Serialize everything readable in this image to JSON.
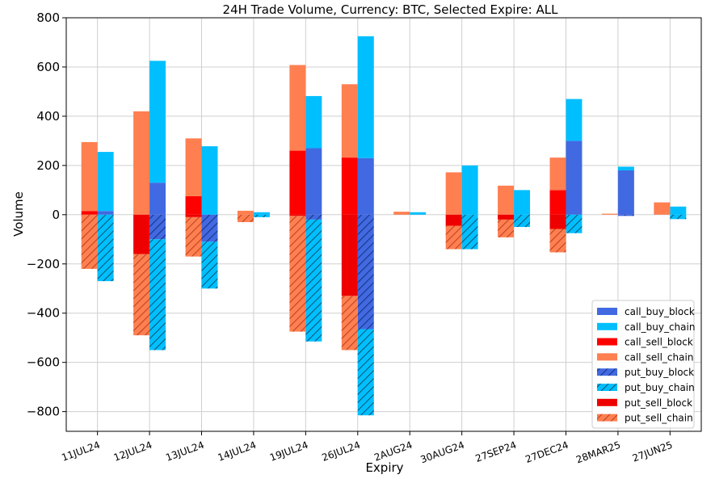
{
  "chart_data": {
    "type": "bar",
    "title": "24H Trade Volume, Currency: BTC, Selected Expire: ALL",
    "xlabel": "Expiry",
    "ylabel": "Volume",
    "ylim": [
      -880,
      800
    ],
    "yticks": [
      -800,
      -600,
      -400,
      -200,
      0,
      200,
      400,
      600,
      800
    ],
    "ytick_labels": [
      "−800",
      "−600",
      "−400",
      "−200",
      "0",
      "200",
      "400",
      "600",
      "800"
    ],
    "grid": true,
    "legend_position": "lower-right",
    "categories": [
      "11JUL24",
      "12JUL24",
      "13JUL24",
      "14JUL24",
      "19JUL24",
      "26JUL24",
      "2AUG24",
      "30AUG24",
      "27SEP24",
      "27DEC24",
      "28MAR25",
      "27JUN25"
    ],
    "series": [
      {
        "name": "call_buy_block",
        "group": "buy",
        "sign": 1,
        "color": "#4169E1",
        "hatch": false,
        "values": [
          15,
          130,
          0,
          0,
          270,
          230,
          0,
          0,
          0,
          300,
          180,
          0
        ]
      },
      {
        "name": "call_buy_chain",
        "group": "buy",
        "sign": 1,
        "color": "#00BFFF",
        "hatch": false,
        "values": [
          240,
          495,
          278,
          10,
          212,
          495,
          10,
          200,
          100,
          170,
          15,
          33
        ]
      },
      {
        "name": "call_sell_block",
        "group": "sell",
        "sign": 1,
        "color": "#FF0000",
        "hatch": false,
        "values": [
          15,
          0,
          75,
          0,
          260,
          232,
          0,
          0,
          0,
          100,
          0,
          0
        ]
      },
      {
        "name": "call_sell_chain",
        "group": "sell",
        "sign": 1,
        "color": "#FF7F50",
        "hatch": false,
        "values": [
          280,
          420,
          235,
          16,
          348,
          298,
          12,
          172,
          118,
          132,
          4,
          50
        ]
      },
      {
        "name": "put_buy_block",
        "group": "buy",
        "sign": -1,
        "color": "#4169E1",
        "hatch": true,
        "values": [
          0,
          100,
          110,
          0,
          20,
          465,
          0,
          0,
          0,
          0,
          5,
          0
        ]
      },
      {
        "name": "put_buy_chain",
        "group": "buy",
        "sign": -1,
        "color": "#00BFFF",
        "hatch": true,
        "values": [
          270,
          450,
          190,
          10,
          495,
          350,
          0,
          140,
          50,
          75,
          0,
          18
        ]
      },
      {
        "name": "put_sell_block",
        "group": "sell",
        "sign": -1,
        "color": "#EE0000",
        "hatch": false,
        "values": [
          0,
          160,
          10,
          0,
          5,
          330,
          0,
          45,
          20,
          58,
          0,
          0
        ]
      },
      {
        "name": "put_sell_chain",
        "group": "sell",
        "sign": -1,
        "color": "#FF7F50",
        "hatch": true,
        "values": [
          220,
          330,
          160,
          30,
          470,
          220,
          0,
          95,
          72,
          95,
          0,
          0
        ]
      }
    ]
  }
}
